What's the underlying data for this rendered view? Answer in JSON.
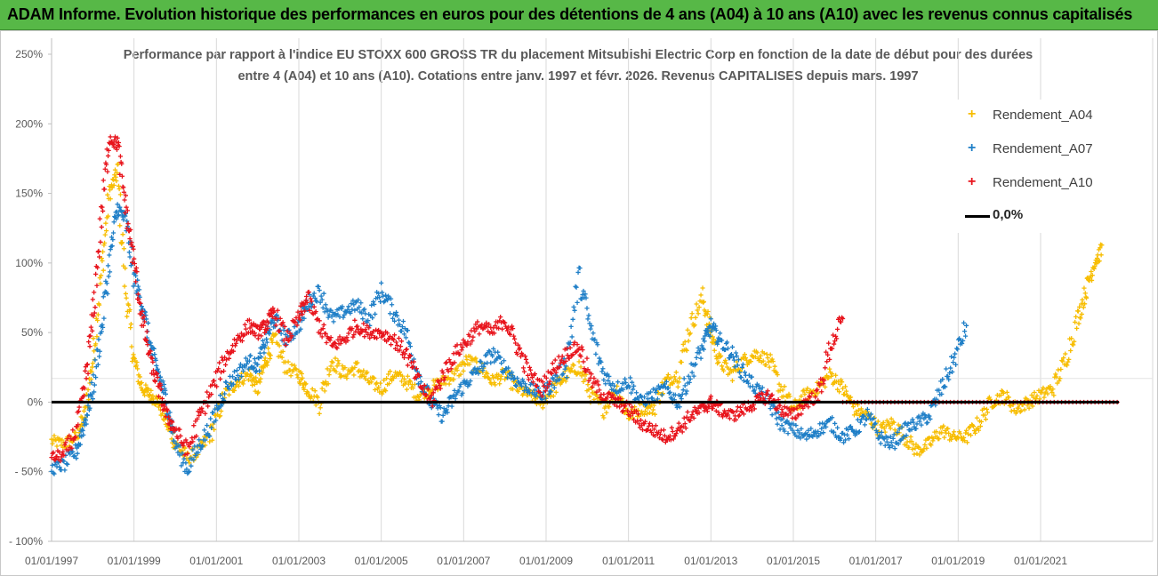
{
  "header": {
    "banner_title": "ADAM Informe. Evolution historique des performances en euros pour des détentions de 4 ans (A04) à 10 ans (A10) avec les revenus connus capitalisés"
  },
  "colors": {
    "banner_bg": "#57b847",
    "A04": "#f7bd00",
    "A07": "#1f7fc7",
    "A10": "#e8141c",
    "zero_line": "#000000"
  },
  "chart_data": {
    "type": "scatter",
    "title_line1": "Performance par rapport à l'indice EU STOXX 600 GROSS TR  du placement Mitsubishi Electric Corp en fonction de la date de début pour des durées",
    "title_line2": "entre 4 (A04) et 10 ans (A10). Cotations entre janv. 1997 et févr.  2026. Revenus CAPITALISES depuis mars. 1997",
    "y_ticks": [
      "250%",
      "200%",
      "150%",
      "100%",
      "50%",
      "0%",
      "- 50%",
      "- 100%"
    ],
    "ylim": [
      -100,
      250
    ],
    "x_ticks": [
      "01/01/1997",
      "01/01/1999",
      "01/01/2001",
      "01/01/2003",
      "01/01/2005",
      "01/01/2007",
      "01/01/2009",
      "01/01/2011",
      "01/01/2013",
      "01/01/2015",
      "01/01/2017",
      "01/01/2019",
      "01/01/2021"
    ],
    "xlim": [
      1997.0,
      2022.9
    ],
    "grid": "vertical",
    "legend_position": "top-right",
    "legend": [
      "Rendement_A04",
      "Rendement_A07",
      "Rendement_A10",
      "0,0%"
    ],
    "series": [
      {
        "name": "Rendement_A04",
        "x": [
          1997.0,
          1997.3,
          1997.6,
          1997.8,
          1998.0,
          1998.2,
          1998.4,
          1998.6,
          1998.8,
          1999.0,
          1999.2,
          1999.4,
          1999.6,
          1999.8,
          2000.0,
          2000.3,
          2000.6,
          2000.9,
          2001.2,
          2001.5,
          2001.8,
          2002.0,
          2002.2,
          2002.4,
          2002.7,
          2003.0,
          2003.2,
          2003.5,
          2003.8,
          2004.1,
          2004.4,
          2004.7,
          2005.0,
          2005.3,
          2005.6,
          2005.9,
          2006.2,
          2006.5,
          2006.8,
          2007.1,
          2007.4,
          2007.7,
          2008.0,
          2008.3,
          2008.6,
          2008.9,
          2009.2,
          2009.5,
          2009.8,
          2010.1,
          2010.4,
          2010.7,
          2011.0,
          2011.3,
          2011.6,
          2011.9,
          2012.2,
          2012.5,
          2012.8,
          2013.0,
          2013.2,
          2013.5,
          2013.8,
          2014.1,
          2014.4,
          2014.7,
          2015.0,
          2015.3,
          2015.6,
          2015.9,
          2016.2,
          2016.5,
          2016.8,
          2017.1,
          2017.4,
          2017.7,
          2018.0,
          2018.3,
          2018.6,
          2018.9,
          2019.2,
          2019.5,
          2019.8,
          2020.1,
          2020.4,
          2020.7,
          2021.0,
          2021.3,
          2021.6,
          2021.9,
          2022.1,
          2022.3,
          2022.5,
          2022.9
        ],
        "values": [
          -28,
          -30,
          -25,
          -10,
          30,
          90,
          150,
          165,
          80,
          30,
          10,
          5,
          0,
          -15,
          -30,
          -40,
          -35,
          -20,
          5,
          15,
          20,
          10,
          30,
          45,
          25,
          20,
          10,
          0,
          30,
          20,
          25,
          15,
          10,
          20,
          15,
          5,
          10,
          15,
          20,
          30,
          25,
          15,
          20,
          10,
          5,
          0,
          10,
          20,
          25,
          5,
          -5,
          10,
          -10,
          -5,
          -5,
          15,
          20,
          55,
          75,
          50,
          30,
          20,
          30,
          35,
          30,
          10,
          -5,
          5,
          10,
          20,
          10,
          -5,
          -10,
          -20,
          -15,
          -25,
          -35,
          -30,
          -20,
          -25,
          -25,
          -15,
          0,
          5,
          -5,
          0,
          5,
          10,
          30,
          60,
          80,
          100,
          110,
          null
        ]
      },
      {
        "name": "Rendement_A07",
        "x": [
          1997.0,
          1997.3,
          1997.6,
          1997.8,
          1998.0,
          1998.2,
          1998.4,
          1998.6,
          1998.8,
          1999.0,
          1999.2,
          1999.4,
          1999.6,
          1999.8,
          2000.0,
          2000.3,
          2000.6,
          2000.9,
          2001.2,
          2001.5,
          2001.8,
          2002.0,
          2002.2,
          2002.4,
          2002.7,
          2003.0,
          2003.2,
          2003.5,
          2003.8,
          2004.1,
          2004.4,
          2004.7,
          2005.0,
          2005.3,
          2005.6,
          2005.9,
          2006.2,
          2006.5,
          2006.8,
          2007.1,
          2007.4,
          2007.7,
          2008.0,
          2008.3,
          2008.6,
          2008.9,
          2009.2,
          2009.5,
          2009.8,
          2010.1,
          2010.4,
          2010.7,
          2011.0,
          2011.3,
          2011.6,
          2011.9,
          2012.2,
          2012.5,
          2012.8,
          2013.0,
          2013.2,
          2013.5,
          2013.8,
          2014.1,
          2014.4,
          2014.7,
          2015.0,
          2015.3,
          2015.6,
          2015.9,
          2016.2,
          2016.5,
          2016.8,
          2017.1,
          2017.4,
          2017.7,
          2018.0,
          2018.3,
          2018.6,
          2018.9,
          2019.2
        ],
        "values": [
          -48,
          -45,
          -35,
          -15,
          10,
          50,
          100,
          140,
          130,
          90,
          70,
          40,
          20,
          0,
          -30,
          -48,
          -30,
          -15,
          10,
          20,
          30,
          25,
          45,
          60,
          45,
          55,
          70,
          80,
          60,
          65,
          70,
          60,
          80,
          65,
          50,
          20,
          0,
          -10,
          5,
          15,
          25,
          35,
          25,
          15,
          10,
          5,
          15,
          30,
          90,
          50,
          20,
          10,
          15,
          0,
          5,
          10,
          0,
          20,
          40,
          55,
          45,
          35,
          20,
          10,
          0,
          -15,
          -20,
          -25,
          -20,
          -15,
          -25,
          -20,
          -10,
          -25,
          -30,
          -20,
          -15,
          -10,
          10,
          30,
          55
        ]
      },
      {
        "name": "Rendement_A10",
        "x": [
          1997.0,
          1997.3,
          1997.6,
          1997.8,
          1998.0,
          1998.2,
          1998.4,
          1998.6,
          1998.8,
          1999.0,
          1999.2,
          1999.4,
          1999.6,
          1999.8,
          2000.0,
          2000.3,
          2000.6,
          2000.9,
          2001.2,
          2001.5,
          2001.8,
          2002.0,
          2002.2,
          2002.4,
          2002.7,
          2003.0,
          2003.2,
          2003.5,
          2003.8,
          2004.1,
          2004.4,
          2004.7,
          2005.0,
          2005.3,
          2005.6,
          2005.9,
          2006.2,
          2006.5,
          2006.8,
          2007.1,
          2007.4,
          2007.7,
          2008.0,
          2008.3,
          2008.6,
          2008.9,
          2009.2,
          2009.5,
          2009.8,
          2010.1,
          2010.4,
          2010.7,
          2011.0,
          2011.3,
          2011.6,
          2011.9,
          2012.2,
          2012.5,
          2012.8,
          2013.0,
          2013.2,
          2013.5,
          2013.8,
          2014.1,
          2014.4,
          2014.7,
          2015.0,
          2015.3,
          2015.6,
          2015.9,
          2016.2
        ],
        "values": [
          -40,
          -38,
          -20,
          10,
          60,
          130,
          190,
          185,
          140,
          100,
          60,
          30,
          10,
          -10,
          -20,
          -35,
          -10,
          10,
          30,
          45,
          55,
          50,
          55,
          65,
          45,
          60,
          75,
          55,
          40,
          45,
          55,
          50,
          50,
          45,
          35,
          15,
          0,
          20,
          35,
          45,
          55,
          50,
          60,
          40,
          20,
          10,
          25,
          35,
          40,
          15,
          5,
          0,
          -5,
          -15,
          -20,
          -25,
          -20,
          -10,
          -5,
          0,
          -5,
          -10,
          -5,
          0,
          5,
          -5,
          -10,
          0,
          5,
          40,
          60
        ]
      },
      {
        "name": "0,0%",
        "x": [
          1997.0,
          2022.9
        ],
        "values": [
          0,
          0
        ]
      }
    ]
  }
}
